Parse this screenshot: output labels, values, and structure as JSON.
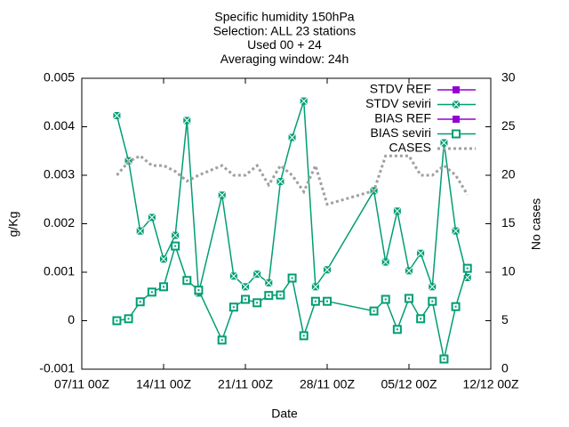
{
  "chart_data": {
    "type": "line",
    "title": [
      "Specific humidity 150hPa",
      "Selection: ALL      23 stations",
      "Used 00 + 24",
      "Averaging window: 24h"
    ],
    "x_label": "Date",
    "y_label": "g/Kg",
    "y2_label": "No cases",
    "x": [
      "10/11",
      "11/11",
      "12/11",
      "13/11",
      "14/11",
      "15/11",
      "16/11",
      "17/11",
      "19/11",
      "20/11",
      "21/11",
      "22/11",
      "23/11",
      "24/11",
      "25/11",
      "26/11",
      "27/11",
      "28/11",
      "02/12",
      "03/12",
      "04/12",
      "05/12",
      "06/12",
      "07/12",
      "08/12",
      "09/12",
      "10/12"
    ],
    "xlim": [
      "07/11",
      "12/12"
    ],
    "xticks": [
      {
        "value": "07/11",
        "label": "07/11 00Z"
      },
      {
        "value": "14/11",
        "label": "14/11 00Z"
      },
      {
        "value": "21/11",
        "label": "21/11 00Z"
      },
      {
        "value": "28/11",
        "label": "28/11 00Z"
      },
      {
        "value": "05/12",
        "label": "05/12 00Z"
      },
      {
        "value": "12/12",
        "label": "12/12 00Z"
      }
    ],
    "ylim": [
      -0.001,
      0.005
    ],
    "yticks": [
      -0.001,
      0,
      0.001,
      0.002,
      0.003,
      0.004,
      0.005
    ],
    "y2lim": [
      0,
      30
    ],
    "y2ticks": [
      0,
      5,
      10,
      15,
      20,
      25,
      30
    ],
    "legend": "top-right",
    "series": [
      {
        "name": "STDV REF",
        "color": "#9400d3",
        "marker": "filled",
        "values": [
          null,
          null,
          null,
          null,
          null,
          null,
          null,
          null,
          null,
          null,
          null,
          null,
          null,
          null,
          null,
          null,
          null,
          null,
          null,
          null,
          null,
          null,
          null,
          null,
          null,
          null,
          null
        ]
      },
      {
        "name": "STDV seviri",
        "color": "#009e73",
        "marker": "cross",
        "values": [
          0.00423,
          0.0033,
          0.00185,
          0.00213,
          0.00127,
          0.00176,
          0.00413,
          0.00057,
          0.00259,
          0.00092,
          0.0007,
          0.00096,
          0.00078,
          0.00287,
          0.00378,
          0.00453,
          0.0007,
          0.00105,
          0.00268,
          0.00121,
          0.00226,
          0.00103,
          0.00139,
          0.0007,
          0.00367,
          0.00185,
          0.00089
        ]
      },
      {
        "name": "BIAS REF",
        "color": "#9400d3",
        "marker": "filled",
        "values": [
          null,
          null,
          null,
          null,
          null,
          null,
          null,
          null,
          null,
          null,
          null,
          null,
          null,
          null,
          null,
          null,
          null,
          null,
          null,
          null,
          null,
          null,
          null,
          null,
          null,
          null,
          null
        ]
      },
      {
        "name": "BIAS seviri",
        "color": "#009e73",
        "marker": "open",
        "values": [
          0,
          4e-05,
          0.00039,
          0.00059,
          0.0007,
          0.00154,
          0.00083,
          0.00063,
          -0.0004,
          0.00028,
          0.00044,
          0.00037,
          0.00052,
          0.00053,
          0.00088,
          -0.00031,
          0.0004,
          0.0004,
          0.0002,
          0.00044,
          -0.00018,
          0.00046,
          4e-05,
          0.0004,
          -0.00079,
          0.00029,
          0.00108
        ]
      },
      {
        "name": "CASES",
        "color": "#a0a0a0",
        "marker": "dotted",
        "axis": "y2",
        "values": [
          20,
          21.4,
          22,
          21,
          21,
          20.4,
          19.4,
          20,
          21,
          20,
          20,
          21,
          19,
          21,
          20,
          18.3,
          21,
          17,
          18.4,
          22,
          22,
          22,
          20,
          20,
          21,
          20,
          18
        ]
      }
    ]
  }
}
